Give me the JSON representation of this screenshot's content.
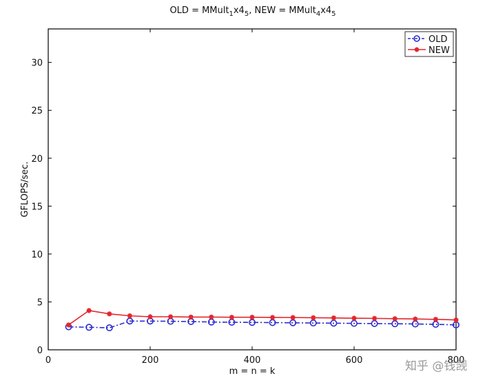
{
  "chart_data": {
    "type": "line",
    "title_parts": [
      "OLD = MMult",
      "1",
      "x4",
      "5",
      ", NEW = MMult",
      "4",
      "x4",
      "5"
    ],
    "xlabel": "m = n = k",
    "ylabel": "GFLOPS/sec.",
    "xlim": [
      0,
      800
    ],
    "ylim": [
      0,
      33.5
    ],
    "x_ticks": [
      0,
      200,
      400,
      600,
      800
    ],
    "x_tick_labels": [
      "0",
      "200",
      "400",
      "600",
      "800"
    ],
    "y_ticks": [
      0,
      5,
      10,
      15,
      20,
      25,
      30
    ],
    "y_tick_labels": [
      "0",
      "5",
      "10",
      "15",
      "20",
      "25",
      "30"
    ],
    "grid": false,
    "legend_position": "top-right",
    "x": [
      40,
      80,
      120,
      160,
      200,
      240,
      280,
      320,
      360,
      400,
      440,
      480,
      520,
      560,
      600,
      640,
      680,
      720,
      760,
      800
    ],
    "series": [
      {
        "name": "OLD",
        "color": "#2b2bd1",
        "marker": "circle",
        "line_style": "dash-dot",
        "values": [
          2.4,
          2.35,
          2.3,
          3.0,
          3.0,
          2.98,
          2.95,
          2.9,
          2.88,
          2.86,
          2.84,
          2.82,
          2.8,
          2.78,
          2.76,
          2.74,
          2.72,
          2.7,
          2.66,
          2.6
        ]
      },
      {
        "name": "NEW",
        "color": "#e4262c",
        "marker": "star",
        "line_style": "solid",
        "values": [
          2.6,
          4.1,
          3.75,
          3.55,
          3.45,
          3.45,
          3.42,
          3.42,
          3.4,
          3.4,
          3.38,
          3.37,
          3.35,
          3.33,
          3.3,
          3.28,
          3.25,
          3.22,
          3.18,
          3.12
        ]
      }
    ]
  },
  "watermark": {
    "text": "知乎 @钱觊"
  }
}
